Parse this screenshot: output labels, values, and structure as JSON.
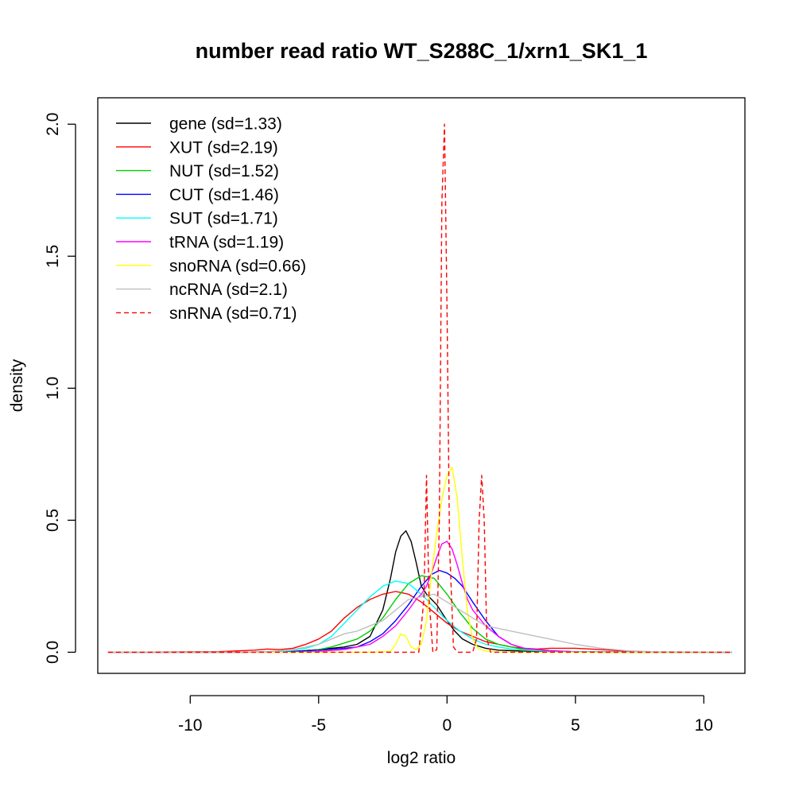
{
  "chart_data": {
    "type": "line",
    "title": "number read ratio WT_S288C_1/xrn1_SK1_1",
    "xlabel": "log2 ratio",
    "ylabel": "density",
    "xlim": [
      -13.6,
      11.6
    ],
    "ylim": [
      -0.08,
      2.1
    ],
    "xticks": [
      -10,
      -5,
      0,
      5,
      10
    ],
    "yticks": [
      0.0,
      0.5,
      1.0,
      1.5,
      2.0
    ],
    "xtick_labels": [
      "-10",
      "-5",
      "0",
      "5",
      "10"
    ],
    "ytick_labels": [
      "0.0",
      "0.5",
      "1.0",
      "1.5",
      "2.0"
    ],
    "grid": false,
    "legend_position": "top-left",
    "series": [
      {
        "name": "gene (sd=1.33)",
        "color": "#000000",
        "dash": "solid",
        "x": [
          -13.2,
          -8,
          -6,
          -5,
          -4,
          -3.5,
          -3,
          -2.5,
          -2.2,
          -2,
          -1.8,
          -1.6,
          -1.4,
          -1.2,
          -1,
          -0.8,
          -0.6,
          -0.4,
          -0.2,
          0,
          0.3,
          0.6,
          1,
          1.5,
          2,
          3,
          4,
          6,
          11.1
        ],
        "y": [
          0,
          0,
          0.003,
          0.01,
          0.02,
          0.03,
          0.06,
          0.16,
          0.28,
          0.38,
          0.44,
          0.46,
          0.42,
          0.34,
          0.25,
          0.22,
          0.2,
          0.18,
          0.15,
          0.12,
          0.08,
          0.05,
          0.03,
          0.015,
          0.008,
          0.004,
          0.002,
          0,
          0
        ]
      },
      {
        "name": "XUT (sd=2.19)",
        "color": "#ff0000",
        "dash": "solid",
        "x": [
          -13.2,
          -9,
          -7.5,
          -7,
          -6.5,
          -6,
          -5.5,
          -5,
          -4.5,
          -4,
          -3.5,
          -3,
          -2.5,
          -2,
          -1.5,
          -1,
          -0.5,
          0,
          0.5,
          1,
          1.5,
          2,
          2.5,
          3,
          3.5,
          4,
          5,
          6,
          7,
          8,
          11.1
        ],
        "y": [
          0,
          0.002,
          0.008,
          0.012,
          0.01,
          0.015,
          0.03,
          0.05,
          0.08,
          0.13,
          0.17,
          0.2,
          0.22,
          0.23,
          0.22,
          0.19,
          0.15,
          0.11,
          0.08,
          0.06,
          0.04,
          0.03,
          0.02,
          0.015,
          0.012,
          0.015,
          0.015,
          0.01,
          0.004,
          0.001,
          0
        ]
      },
      {
        "name": "NUT (sd=1.52)",
        "color": "#00cd00",
        "dash": "solid",
        "x": [
          -13.2,
          -8,
          -6,
          -5,
          -4.5,
          -4,
          -3.5,
          -3,
          -2.5,
          -2,
          -1.5,
          -1,
          -0.5,
          0,
          0.5,
          1,
          1.5,
          2,
          2.5,
          3,
          4,
          5,
          6,
          11.1
        ],
        "y": [
          0,
          0,
          0.003,
          0.01,
          0.02,
          0.035,
          0.05,
          0.08,
          0.13,
          0.2,
          0.26,
          0.29,
          0.28,
          0.22,
          0.15,
          0.09,
          0.05,
          0.03,
          0.02,
          0.01,
          0.005,
          0.002,
          0,
          0
        ]
      },
      {
        "name": "CUT (sd=1.46)",
        "color": "#0000ff",
        "dash": "solid",
        "x": [
          -13.2,
          -8,
          -6,
          -5,
          -4,
          -3.5,
          -3,
          -2.5,
          -2,
          -1.5,
          -1,
          -0.6,
          -0.3,
          0,
          0.3,
          0.6,
          1,
          1.5,
          2,
          2.5,
          3,
          4,
          5,
          11.1
        ],
        "y": [
          0,
          0,
          0.003,
          0.008,
          0.015,
          0.02,
          0.04,
          0.07,
          0.12,
          0.18,
          0.25,
          0.295,
          0.31,
          0.3,
          0.28,
          0.25,
          0.19,
          0.12,
          0.06,
          0.03,
          0.015,
          0.006,
          0.002,
          0
        ]
      },
      {
        "name": "SUT (sd=1.71)",
        "color": "#00ffff",
        "dash": "solid",
        "x": [
          -13.2,
          -8,
          -6.5,
          -6,
          -5.5,
          -5,
          -4.5,
          -4,
          -3.5,
          -3,
          -2.5,
          -2,
          -1.5,
          -1,
          -0.5,
          0,
          0.5,
          1,
          1.5,
          2,
          2.5,
          3,
          4,
          5,
          6,
          11.1
        ],
        "y": [
          0,
          0,
          0.003,
          0.008,
          0.015,
          0.03,
          0.06,
          0.11,
          0.16,
          0.21,
          0.25,
          0.27,
          0.26,
          0.22,
          0.17,
          0.12,
          0.08,
          0.05,
          0.03,
          0.02,
          0.012,
          0.008,
          0.004,
          0.002,
          0.001,
          0
        ]
      },
      {
        "name": "tRNA (sd=1.19)",
        "color": "#ff00ff",
        "dash": "solid",
        "x": [
          -13.2,
          -6,
          -5,
          -4,
          -3.5,
          -3,
          -2.5,
          -2,
          -1.5,
          -1.2,
          -1,
          -0.8,
          -0.6,
          -0.4,
          -0.2,
          0,
          0.2,
          0.4,
          0.6,
          0.8,
          1,
          1.5,
          2,
          2.5,
          3,
          4,
          5,
          11.1
        ],
        "y": [
          0,
          0,
          0.003,
          0.01,
          0.02,
          0.03,
          0.06,
          0.1,
          0.16,
          0.2,
          0.22,
          0.25,
          0.3,
          0.36,
          0.41,
          0.42,
          0.39,
          0.33,
          0.26,
          0.2,
          0.16,
          0.1,
          0.06,
          0.03,
          0.015,
          0.005,
          0.001,
          0
        ]
      },
      {
        "name": "snoRNA (sd=0.66)",
        "color": "#ffff00",
        "dash": "solid",
        "x": [
          -13.2,
          -3,
          -2.2,
          -2,
          -1.8,
          -1.6,
          -1.4,
          -1.2,
          -1,
          -0.8,
          -0.6,
          -0.4,
          -0.2,
          0,
          0.2,
          0.4,
          0.6,
          0.8,
          1,
          1.2,
          1.5,
          2,
          3,
          11.1
        ],
        "y": [
          0,
          0,
          0.003,
          0.03,
          0.07,
          0.06,
          0.02,
          0.01,
          0.03,
          0.12,
          0.3,
          0.45,
          0.58,
          0.67,
          0.7,
          0.58,
          0.35,
          0.15,
          0.05,
          0.015,
          0.004,
          0.001,
          0,
          0
        ]
      },
      {
        "name": "ncRNA (sd=2.1)",
        "color": "#bebebe",
        "dash": "solid",
        "x": [
          -13.2,
          -8,
          -7,
          -6,
          -5,
          -4.5,
          -4,
          -3.5,
          -3,
          -2.5,
          -2,
          -1.5,
          -1,
          -0.5,
          0,
          0.5,
          1,
          1.5,
          2,
          3,
          4,
          5,
          6,
          7,
          8,
          11.1
        ],
        "y": [
          0,
          0,
          0.002,
          0.01,
          0.03,
          0.05,
          0.07,
          0.08,
          0.1,
          0.12,
          0.16,
          0.2,
          0.21,
          0.22,
          0.19,
          0.16,
          0.13,
          0.1,
          0.09,
          0.07,
          0.05,
          0.03,
          0.015,
          0.006,
          0.002,
          0
        ]
      },
      {
        "name": "snRNA (sd=0.71)",
        "color": "#ff0000",
        "dash": "dashed",
        "x": [
          -13.2,
          -1.1,
          -0.9,
          -0.8,
          -0.7,
          -0.55,
          -0.4,
          -0.3,
          -0.2,
          -0.1,
          0,
          0.1,
          0.25,
          0.4,
          1,
          1.15,
          1.25,
          1.35,
          1.45,
          1.55,
          1.7,
          11.1
        ],
        "y": [
          0,
          0,
          0.2,
          0.67,
          0.2,
          0,
          0.01,
          0.5,
          1.7,
          2.0,
          1.3,
          0.4,
          0.02,
          0,
          0,
          0.05,
          0.5,
          0.67,
          0.5,
          0.05,
          0,
          0
        ]
      }
    ]
  }
}
